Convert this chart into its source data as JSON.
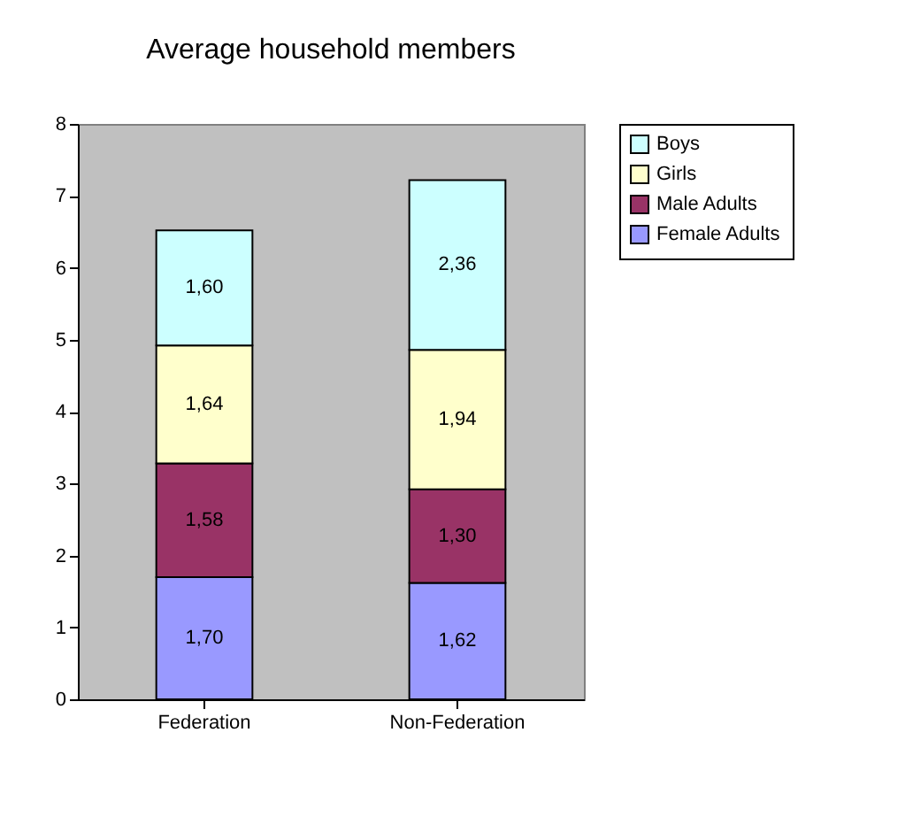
{
  "chart_data": {
    "type": "bar",
    "title": "Average household members",
    "categories": [
      "Federation",
      "Non-Federation"
    ],
    "stacked": true,
    "series": [
      {
        "name": "Female Adults",
        "color": "#9999ff",
        "values": [
          1.7,
          1.62
        ],
        "value_labels": [
          "1,70",
          "1,62"
        ]
      },
      {
        "name": "Male Adults",
        "color": "#993366",
        "values": [
          1.58,
          1.3
        ],
        "value_labels": [
          "1,58",
          "1,30"
        ]
      },
      {
        "name": "Girls",
        "color": "#ffffcc",
        "values": [
          1.64,
          1.94
        ],
        "value_labels": [
          "1,64",
          "1,94"
        ]
      },
      {
        "name": "Boys",
        "color": "#ccffff",
        "values": [
          1.6,
          2.36
        ],
        "value_labels": [
          "1,60",
          "2,36"
        ]
      }
    ],
    "ylim": [
      0,
      8
    ],
    "yticks": [
      0,
      1,
      2,
      3,
      4,
      5,
      6,
      7,
      8
    ],
    "grid": false,
    "legend": "right"
  }
}
